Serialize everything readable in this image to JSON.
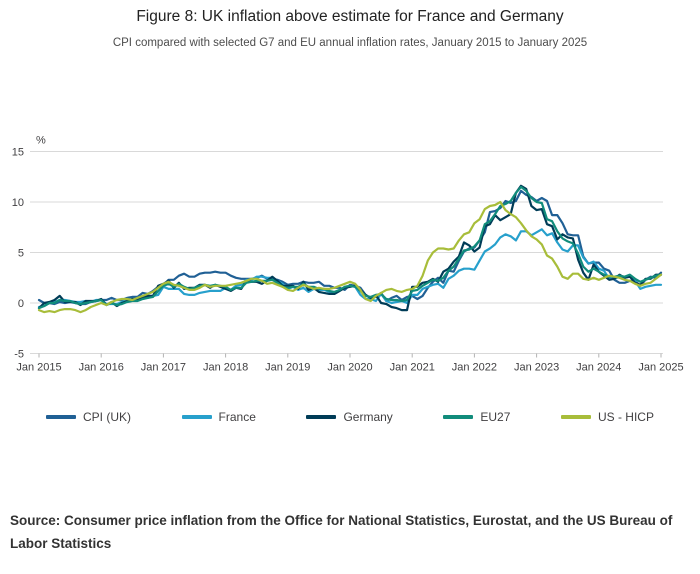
{
  "header": {
    "title": "Figure 8: UK inflation above estimate for France and Germany",
    "subtitle": "CPI compared with selected G7 and EU annual inflation rates, January 2015 to January 2025"
  },
  "footer": {
    "source": "Source: Consumer price inflation from the Office for National Statistics, Eurostat, and the US Bureau of Labor Statistics"
  },
  "chart_data": {
    "type": "line",
    "title": "Figure 8: UK inflation above estimate for France and Germany",
    "subtitle": "CPI compared with selected G7 and EU annual inflation rates, January 2015 to January 2025",
    "unit_label": "%",
    "grid": "horizontal",
    "gridline_color": "#d9d9d9",
    "legend_position": "bottom",
    "ylim": [
      -5,
      15
    ],
    "y_ticks": [
      15,
      10,
      5,
      0,
      -5
    ],
    "x_tick_labels": [
      "Jan 2015",
      "Jan 2016",
      "Jan 2017",
      "Jan 2018",
      "Jan 2019",
      "Jan 2020",
      "Jan 2021",
      "Jan 2022",
      "Jan 2023",
      "Jan 2024",
      "Jan 2025"
    ],
    "x_frequency": "monthly",
    "series": [
      {
        "name": "CPI (UK)",
        "color": "#206095",
        "values": [
          0.3,
          0.0,
          0.0,
          -0.1,
          0.1,
          0.0,
          0.1,
          0.0,
          -0.1,
          -0.1,
          0.1,
          0.2,
          0.3,
          0.3,
          0.5,
          0.3,
          0.3,
          0.5,
          0.6,
          0.6,
          1.0,
          0.9,
          1.2,
          1.6,
          1.8,
          2.3,
          2.3,
          2.7,
          2.9,
          2.6,
          2.6,
          2.9,
          3.0,
          3.0,
          3.1,
          3.0,
          3.0,
          2.7,
          2.5,
          2.4,
          2.4,
          2.4,
          2.5,
          2.7,
          2.4,
          2.4,
          2.3,
          2.1,
          1.8,
          1.9,
          1.9,
          2.1,
          2.0,
          2.0,
          2.1,
          1.7,
          1.7,
          1.5,
          1.5,
          1.3,
          1.8,
          1.7,
          1.5,
          0.8,
          0.5,
          0.6,
          1.0,
          0.2,
          0.5,
          0.7,
          0.3,
          0.6,
          0.7,
          0.4,
          0.7,
          1.5,
          2.1,
          2.5,
          2.0,
          3.2,
          3.1,
          4.2,
          5.1,
          5.4,
          5.5,
          6.2,
          7.0,
          9.0,
          9.1,
          9.4,
          10.1,
          9.9,
          10.1,
          11.1,
          10.7,
          10.5,
          10.1,
          10.4,
          10.1,
          8.7,
          8.7,
          7.9,
          6.8,
          6.7,
          6.7,
          4.6,
          3.9,
          4.0,
          4.0,
          3.4,
          3.2,
          2.3,
          2.0,
          2.0,
          2.2,
          2.2,
          1.7,
          2.3,
          2.6,
          2.5,
          3.0
        ]
      },
      {
        "name": "France",
        "color": "#27a0cc",
        "values": [
          -0.4,
          -0.3,
          0.0,
          0.1,
          0.3,
          0.3,
          0.2,
          0.1,
          0.1,
          0.2,
          0.1,
          0.3,
          0.3,
          -0.1,
          -0.1,
          -0.1,
          0.1,
          0.3,
          0.4,
          0.4,
          0.5,
          0.5,
          0.7,
          0.8,
          1.6,
          1.4,
          1.4,
          1.4,
          0.9,
          0.8,
          0.8,
          1.0,
          1.1,
          1.2,
          1.2,
          1.2,
          1.5,
          1.3,
          1.7,
          1.8,
          2.3,
          2.3,
          2.6,
          2.6,
          2.5,
          2.5,
          2.2,
          1.9,
          1.4,
          1.6,
          1.3,
          1.5,
          1.1,
          1.4,
          1.3,
          1.3,
          1.1,
          0.9,
          1.2,
          1.6,
          1.7,
          1.6,
          0.8,
          0.4,
          0.4,
          0.2,
          0.9,
          0.2,
          0.0,
          0.1,
          0.2,
          0.0,
          0.8,
          0.8,
          1.4,
          1.6,
          1.8,
          1.9,
          1.5,
          2.4,
          2.7,
          3.2,
          3.4,
          3.4,
          3.3,
          4.2,
          5.1,
          5.4,
          5.8,
          6.5,
          6.8,
          6.6,
          6.2,
          7.1,
          7.1,
          6.7,
          7.0,
          7.3,
          6.7,
          6.9,
          6.0,
          5.3,
          5.1,
          5.7,
          5.7,
          4.5,
          3.9,
          4.1,
          3.4,
          3.2,
          2.4,
          2.4,
          2.6,
          2.5,
          2.7,
          2.2,
          1.4,
          1.6,
          1.7,
          1.8,
          1.8
        ]
      },
      {
        "name": "Germany",
        "color": "#003c57",
        "values": [
          -0.5,
          0.0,
          0.1,
          0.3,
          0.7,
          0.1,
          0.1,
          0.1,
          -0.2,
          0.2,
          0.2,
          0.2,
          0.4,
          -0.2,
          0.1,
          -0.3,
          0.0,
          0.2,
          0.4,
          0.3,
          0.5,
          0.7,
          0.7,
          1.7,
          1.9,
          2.2,
          1.5,
          2.0,
          1.4,
          1.5,
          1.5,
          1.8,
          1.8,
          1.5,
          1.8,
          1.6,
          1.4,
          1.2,
          1.5,
          1.4,
          2.2,
          2.1,
          2.1,
          1.9,
          2.2,
          2.6,
          2.2,
          1.7,
          1.7,
          1.7,
          1.4,
          2.1,
          1.3,
          1.5,
          1.1,
          1.0,
          0.9,
          0.9,
          1.2,
          1.5,
          1.6,
          1.7,
          1.3,
          0.8,
          0.5,
          0.8,
          0.0,
          -0.1,
          -0.4,
          -0.5,
          -0.7,
          -0.7,
          1.6,
          1.6,
          2.0,
          2.1,
          2.4,
          2.1,
          3.1,
          3.4,
          4.1,
          4.6,
          6.0,
          5.7,
          5.1,
          5.5,
          7.6,
          7.8,
          8.7,
          8.2,
          8.5,
          8.8,
          10.9,
          11.6,
          11.3,
          9.6,
          9.2,
          9.3,
          7.8,
          7.6,
          6.3,
          6.8,
          6.5,
          6.4,
          4.3,
          3.0,
          2.3,
          3.8,
          3.1,
          2.7,
          2.3,
          2.4,
          2.8,
          2.5,
          2.6,
          2.0,
          1.8,
          2.4,
          2.4,
          2.8,
          2.8
        ]
      },
      {
        "name": "EU27",
        "color": "#118c7b",
        "values": [
          -0.5,
          -0.3,
          0.0,
          0.0,
          0.3,
          0.2,
          0.2,
          0.0,
          -0.1,
          0.0,
          0.1,
          0.2,
          0.3,
          -0.2,
          0.0,
          -0.2,
          -0.1,
          0.1,
          0.2,
          0.2,
          0.4,
          0.5,
          0.6,
          1.2,
          1.7,
          1.9,
          1.6,
          1.9,
          1.6,
          1.4,
          1.5,
          1.7,
          1.8,
          1.7,
          1.8,
          1.7,
          1.6,
          1.3,
          1.5,
          1.5,
          2.0,
          2.1,
          2.2,
          2.2,
          2.2,
          2.3,
          2.0,
          1.6,
          1.5,
          1.6,
          1.6,
          1.9,
          1.6,
          1.6,
          1.4,
          1.4,
          1.2,
          1.1,
          1.3,
          1.6,
          1.7,
          1.6,
          1.2,
          0.7,
          0.6,
          0.8,
          0.9,
          0.4,
          0.3,
          0.3,
          0.2,
          0.3,
          1.2,
          1.3,
          1.7,
          2.0,
          2.3,
          2.2,
          2.5,
          3.2,
          3.6,
          4.4,
          5.2,
          5.3,
          5.6,
          6.2,
          7.8,
          8.1,
          8.8,
          9.6,
          9.8,
          10.1,
          10.9,
          11.5,
          11.1,
          10.4,
          10.0,
          9.9,
          8.3,
          8.1,
          7.1,
          6.4,
          6.1,
          5.9,
          4.9,
          3.6,
          3.1,
          3.4,
          3.1,
          2.8,
          2.6,
          2.6,
          2.7,
          2.6,
          2.8,
          2.4,
          2.1,
          2.3,
          2.5,
          2.7,
          2.8
        ]
      },
      {
        "name": "US - HICP",
        "color": "#a8bd3a",
        "values": [
          -0.7,
          -0.9,
          -0.8,
          -0.9,
          -0.7,
          -0.6,
          -0.6,
          -0.7,
          -0.9,
          -0.7,
          -0.4,
          -0.2,
          0.0,
          -0.2,
          0.1,
          0.3,
          0.4,
          0.4,
          0.3,
          0.5,
          0.7,
          0.9,
          1.1,
          1.5,
          1.9,
          2.1,
          1.8,
          1.7,
          1.5,
          1.3,
          1.3,
          1.5,
          1.8,
          1.6,
          1.7,
          1.7,
          1.7,
          1.8,
          1.9,
          2.0,
          2.2,
          2.4,
          2.4,
          2.2,
          1.9,
          2.0,
          1.8,
          1.6,
          1.3,
          1.2,
          1.5,
          1.8,
          1.6,
          1.4,
          1.5,
          1.4,
          1.4,
          1.5,
          1.7,
          1.9,
          2.1,
          1.9,
          1.3,
          0.4,
          0.2,
          0.7,
          1.0,
          1.3,
          1.4,
          1.2,
          1.1,
          1.3,
          1.4,
          1.7,
          2.7,
          4.2,
          5.0,
          5.4,
          5.4,
          5.3,
          5.4,
          6.2,
          6.8,
          7.0,
          7.9,
          8.3,
          9.3,
          9.6,
          9.7,
          10.0,
          9.2,
          8.8,
          8.5,
          7.9,
          7.2,
          6.6,
          6.3,
          5.8,
          4.7,
          4.4,
          3.6,
          2.6,
          2.4,
          2.9,
          2.9,
          2.4,
          2.3,
          2.5,
          2.3,
          2.5,
          2.7,
          2.6,
          2.5,
          2.3,
          2.2,
          1.9,
          1.7,
          1.9,
          2.0,
          2.4,
          2.8
        ]
      }
    ]
  }
}
